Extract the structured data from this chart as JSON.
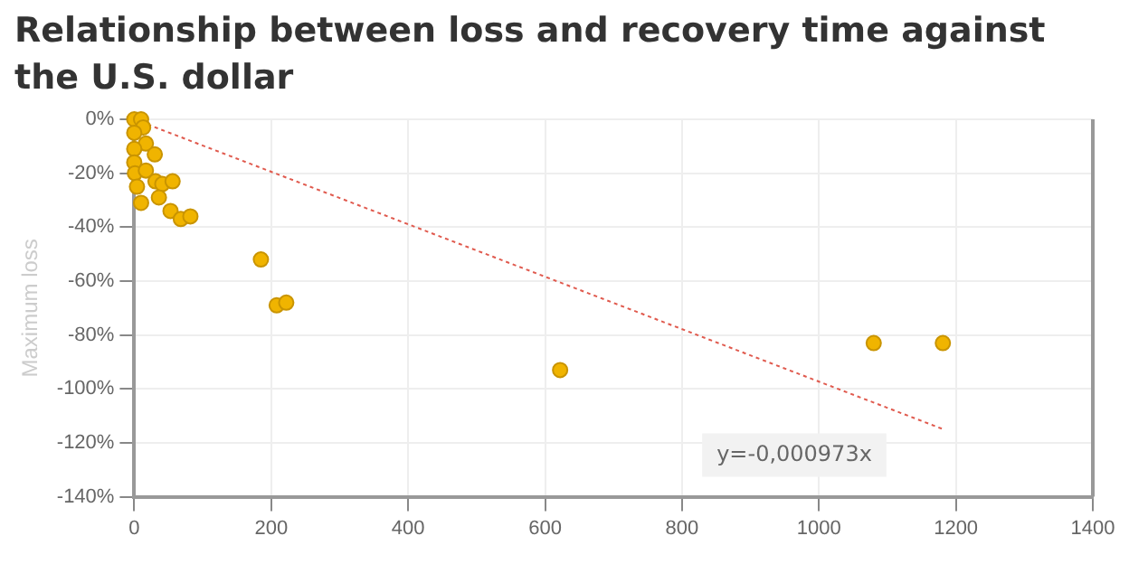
{
  "chart_data": {
    "type": "scatter",
    "title": "Relationship between loss and recovery time against the U.S. dollar",
    "ylabel": "Maximum loss",
    "series": [
      {
        "color": "#f0b400",
        "marker": "circle",
        "x": [
          0,
          10,
          13,
          0,
          17,
          30,
          0,
          0,
          1,
          17,
          31,
          41,
          56,
          4,
          36,
          10,
          53,
          68,
          82,
          185,
          208,
          222,
          622,
          1080,
          1181
        ],
        "values": [
          0,
          0,
          -3,
          -5,
          -9,
          -13,
          -11,
          -16,
          -20,
          -19,
          -23,
          -24,
          -23,
          -25,
          -29,
          -31,
          -34,
          -37,
          -36,
          -52,
          -69,
          -68,
          -93,
          -83,
          -83
        ]
      },
      {
        "type": "line",
        "color": "#e05a4e",
        "line_style": "dotted",
        "x": [
          0,
          1180
        ],
        "values": [
          0,
          -114.8
        ]
      }
    ],
    "xlim": [
      0,
      1400
    ],
    "xticks": [
      0,
      200,
      400,
      600,
      800,
      1000,
      1200,
      1400
    ],
    "ylim": [
      -140,
      0
    ],
    "yticks": [
      {
        "value": 0,
        "label": "0%"
      },
      {
        "value": -20,
        "label": "-20%"
      },
      {
        "value": -40,
        "label": "-40%"
      },
      {
        "value": -60,
        "label": "-60%"
      },
      {
        "value": -80,
        "label": "-80%"
      },
      {
        "value": -100,
        "label": "-100%"
      },
      {
        "value": -120,
        "label": "-120%"
      },
      {
        "value": -140,
        "label": "-140%"
      }
    ],
    "annotations": [
      "y=-0,000973x"
    ],
    "grid": true,
    "legend": false
  }
}
